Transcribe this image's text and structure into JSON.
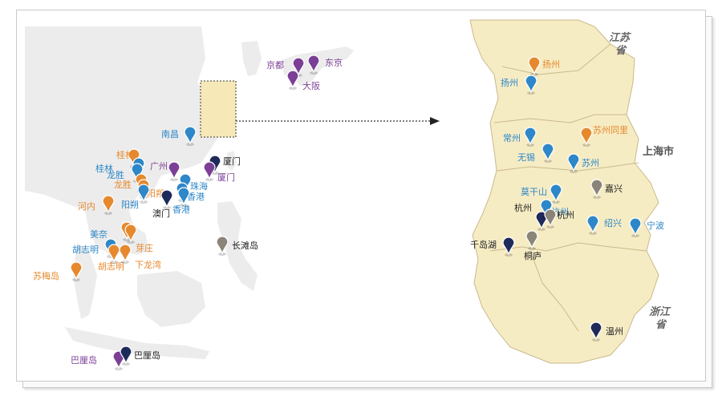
{
  "colors": {
    "purple": "#7b3f96",
    "orange": "#e6892e",
    "blue": "#2d87c8",
    "navy": "#1d2a5a",
    "gray": "#8b8478",
    "black_label": "#222222",
    "land_left": "#ececec",
    "land_right": "#f6ecc4",
    "border": "#c9b98a"
  },
  "region_labels": {
    "jiangsu": "江苏\n省",
    "shanghai": "上海市",
    "zhejiang": "浙江\n省"
  },
  "left_pins": [
    {
      "id": "jingdu",
      "label": "京都",
      "color": "purple",
      "label_color": "purple"
    },
    {
      "id": "dongjing",
      "label": "东京",
      "color": "purple",
      "label_color": "purple"
    },
    {
      "id": "daban",
      "label": "大阪",
      "color": "purple",
      "label_color": "purple"
    },
    {
      "id": "nanchang",
      "label": "南昌",
      "color": "blue",
      "label_color": "blue"
    },
    {
      "id": "guilin1",
      "label": "桂林",
      "color": "orange",
      "label_color": "orange"
    },
    {
      "id": "guilin2",
      "label": "桂林",
      "color": "blue",
      "label_color": "blue"
    },
    {
      "id": "guangzhou",
      "label": "广州",
      "color": "purple",
      "label_color": "purple"
    },
    {
      "id": "xiamen1",
      "label": "厦门",
      "color": "navy",
      "label_color": "black"
    },
    {
      "id": "xiamen2",
      "label": "厦门",
      "color": "purple",
      "label_color": "purple"
    },
    {
      "id": "longsheng1",
      "label": "龙胜",
      "color": "blue",
      "label_color": "blue"
    },
    {
      "id": "longsheng2",
      "label": "龙胜",
      "color": "orange",
      "label_color": "orange"
    },
    {
      "id": "yangshuo1",
      "label": "阳朔",
      "color": "orange",
      "label_color": "orange"
    },
    {
      "id": "yangshuo2",
      "label": "阳朔",
      "color": "blue",
      "label_color": "blue"
    },
    {
      "id": "zhuhai",
      "label": "珠海",
      "color": "blue",
      "label_color": "blue"
    },
    {
      "id": "xianggang1",
      "label": "香港",
      "color": "blue",
      "label_color": "blue"
    },
    {
      "id": "xianggang2",
      "label": "香港",
      "color": "blue",
      "label_color": "blue"
    },
    {
      "id": "aomen",
      "label": "澳门",
      "color": "navy",
      "label_color": "black"
    },
    {
      "id": "henei",
      "label": "河内",
      "color": "orange",
      "label_color": "orange"
    },
    {
      "id": "changtandao",
      "label": "长滩岛",
      "color": "gray",
      "label_color": "black"
    },
    {
      "id": "meinai",
      "label": "美奈",
      "color": "orange",
      "label_color": "blue"
    },
    {
      "id": "yazhuang",
      "label": "芽庄",
      "color": "orange",
      "label_color": "orange"
    },
    {
      "id": "huzhiming1",
      "label": "胡志明",
      "color": "blue",
      "label_color": "blue"
    },
    {
      "id": "huzhiming2",
      "label": "胡志明",
      "color": "orange",
      "label_color": "orange"
    },
    {
      "id": "xialongwan",
      "label": "下龙湾",
      "color": "orange",
      "label_color": "orange"
    },
    {
      "id": "sumeidao",
      "label": "苏梅岛",
      "color": "orange",
      "label_color": "orange"
    },
    {
      "id": "balidao1",
      "label": "巴厘岛",
      "color": "purple",
      "label_color": "purple"
    },
    {
      "id": "balidao2",
      "label": "巴厘岛",
      "color": "navy",
      "label_color": "black"
    }
  ],
  "right_pins": [
    {
      "id": "yangzhou1",
      "label": "扬州",
      "color": "orange",
      "label_color": "orange"
    },
    {
      "id": "yangzhou2",
      "label": "扬州",
      "color": "blue",
      "label_color": "blue"
    },
    {
      "id": "changzhou",
      "label": "常州",
      "color": "blue",
      "label_color": "blue"
    },
    {
      "id": "suzhoutongli",
      "label": "苏州同里",
      "color": "orange",
      "label_color": "orange"
    },
    {
      "id": "wuxi",
      "label": "无锡",
      "color": "blue",
      "label_color": "blue"
    },
    {
      "id": "suzhou",
      "label": "苏州",
      "color": "blue",
      "label_color": "blue"
    },
    {
      "id": "moganshan",
      "label": "莫干山",
      "color": "blue",
      "label_color": "blue"
    },
    {
      "id": "jiaxing",
      "label": "嘉兴",
      "color": "gray",
      "label_color": "black"
    },
    {
      "id": "hangzhou1",
      "label": "杭州",
      "color": "navy",
      "label_color": "black"
    },
    {
      "id": "hangzhou2",
      "label": "杭州",
      "color": "blue",
      "label_color": "blue"
    },
    {
      "id": "hangzhou3",
      "label": "杭州",
      "color": "gray",
      "label_color": "black"
    },
    {
      "id": "shaoxing",
      "label": "绍兴",
      "color": "blue",
      "label_color": "blue"
    },
    {
      "id": "ningbo",
      "label": "宁波",
      "color": "blue",
      "label_color": "blue"
    },
    {
      "id": "qiandaohu",
      "label": "千岛湖",
      "color": "navy",
      "label_color": "black"
    },
    {
      "id": "tonglu",
      "label": "桐庐",
      "color": "gray",
      "label_color": "black"
    },
    {
      "id": "wenzhou",
      "label": "温州",
      "color": "navy",
      "label_color": "black"
    }
  ]
}
